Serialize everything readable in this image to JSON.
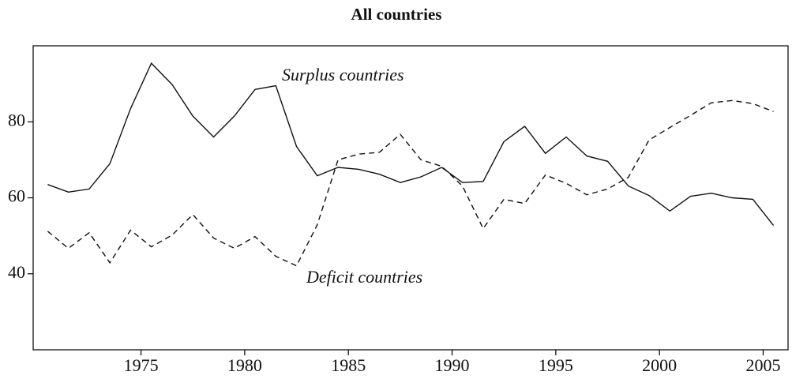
{
  "chart_data": {
    "type": "line",
    "title": "All countries",
    "x": [
      1970.5,
      1971.5,
      1972.5,
      1973.5,
      1974.5,
      1975.5,
      1976.5,
      1977.5,
      1978.5,
      1979.5,
      1980.5,
      1981.5,
      1982.5,
      1983.5,
      1984.5,
      1985.5,
      1986.5,
      1987.5,
      1988.5,
      1989.5,
      1990.5,
      1991.5,
      1992.5,
      1993.5,
      1994.5,
      1995.5,
      1996.5,
      1997.5,
      1998.5,
      1999.5,
      2000.5,
      2001.5,
      2002.5,
      2003.5,
      2004.5,
      2005.5
    ],
    "series": [
      {
        "name": "Surplus countries",
        "color": "#111111",
        "dashed": false,
        "values": [
          63.5,
          61.5,
          62.3,
          69,
          83.5,
          95.4,
          89.8,
          81.5,
          76,
          81.5,
          88.5,
          89.5,
          73.5,
          65.8,
          68,
          67.5,
          66.2,
          64,
          65.5,
          68,
          64,
          64.3,
          74.8,
          78.8,
          71.7,
          76,
          71,
          69.6,
          63.1,
          60.6,
          56.5,
          60.4,
          61.2,
          60,
          59.6,
          52.7
        ]
      },
      {
        "name": "Deficit countries",
        "color": "#111111",
        "dashed": true,
        "values": [
          51.2,
          46.7,
          50.8,
          42.9,
          51.5,
          47.1,
          50.2,
          55.6,
          49.4,
          46.7,
          49.8,
          44.6,
          42.1,
          52.9,
          70,
          71.5,
          72,
          76.7,
          70,
          68.3,
          63.1,
          51.9,
          59.6,
          58.5,
          66,
          63.8,
          60.8,
          62.3,
          65.4,
          75.2,
          78.5,
          81.7,
          85,
          85.6,
          84.8,
          82.7
        ]
      }
    ],
    "xlim": [
      1969.8,
      2006.2
    ],
    "xticks": [
      1975,
      1980,
      1985,
      1990,
      1995,
      2000,
      2005
    ],
    "ylim": [
      20,
      100
    ],
    "yticks": [
      40,
      60,
      80
    ]
  }
}
